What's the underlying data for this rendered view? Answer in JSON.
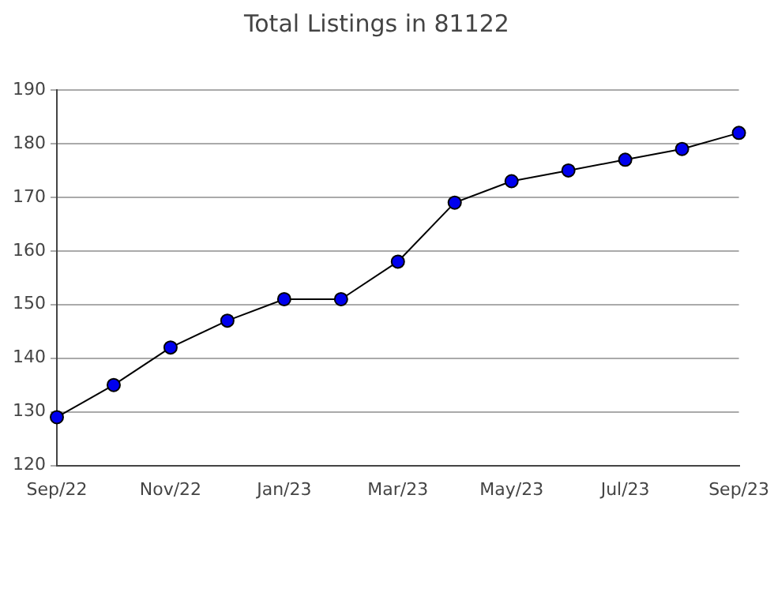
{
  "chart_data": {
    "type": "line",
    "title": "Total Listings in 81122",
    "categories": [
      "Sep/22",
      null,
      "Nov/22",
      null,
      "Jan/23",
      null,
      "Mar/23",
      null,
      "May/23",
      null,
      "Jul/23",
      null,
      "Sep/23"
    ],
    "series": [
      {
        "color": "#0000ee",
        "values": [
          129,
          135,
          142,
          147,
          151,
          151,
          158,
          169,
          173,
          175,
          177,
          179,
          182
        ]
      }
    ],
    "ylim": [
      120,
      190
    ],
    "yticks": [
      120,
      130,
      140,
      150,
      160,
      170,
      180,
      190
    ],
    "grid": "y",
    "legend": false,
    "marker": "circle",
    "line_style": "solid"
  }
}
